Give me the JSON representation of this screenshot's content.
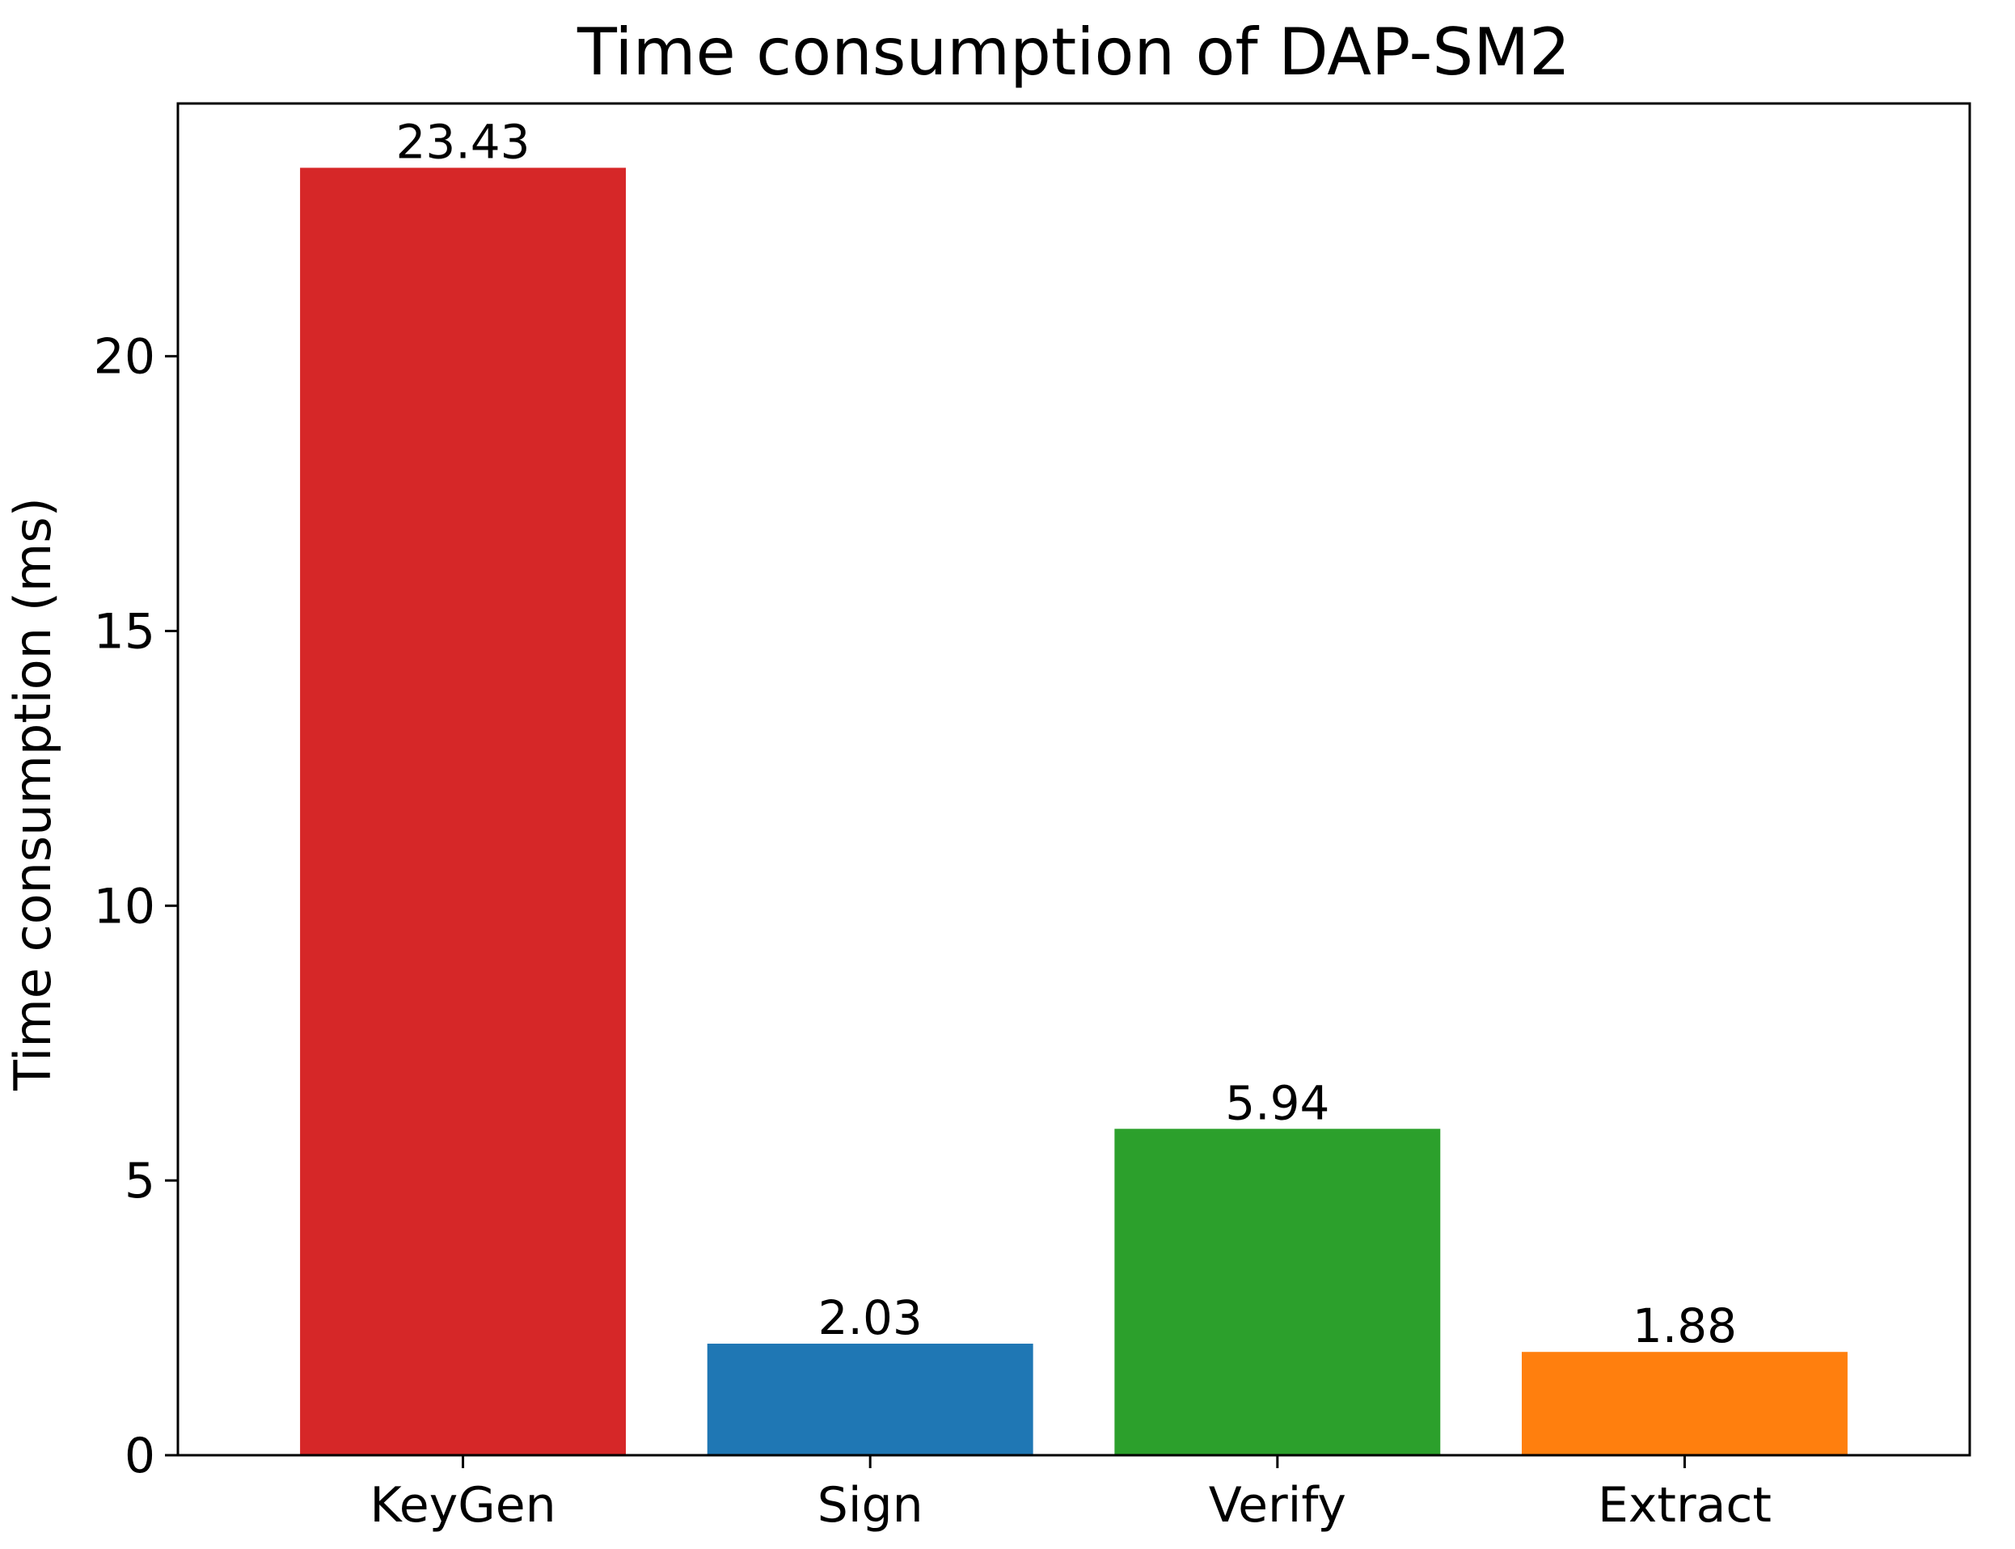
{
  "chart_data": {
    "type": "bar",
    "title": "Time consumption of DAP-SM2",
    "xlabel": "",
    "ylabel": "Time consumption (ms)",
    "categories": [
      "KeyGen",
      "Sign",
      "Verify",
      "Extract"
    ],
    "values": [
      23.43,
      2.03,
      5.94,
      1.88
    ],
    "value_labels": [
      "23.43",
      "2.03",
      "5.94",
      "1.88"
    ],
    "colors": [
      "#d62728",
      "#1f77b4",
      "#2ca02c",
      "#ff7f0e"
    ],
    "ylim": [
      0,
      24.6
    ],
    "yticks": [
      0,
      5,
      10,
      15,
      20
    ],
    "ytick_labels": [
      "0",
      "5",
      "10",
      "15",
      "20"
    ],
    "grid": false,
    "legend": "none"
  }
}
